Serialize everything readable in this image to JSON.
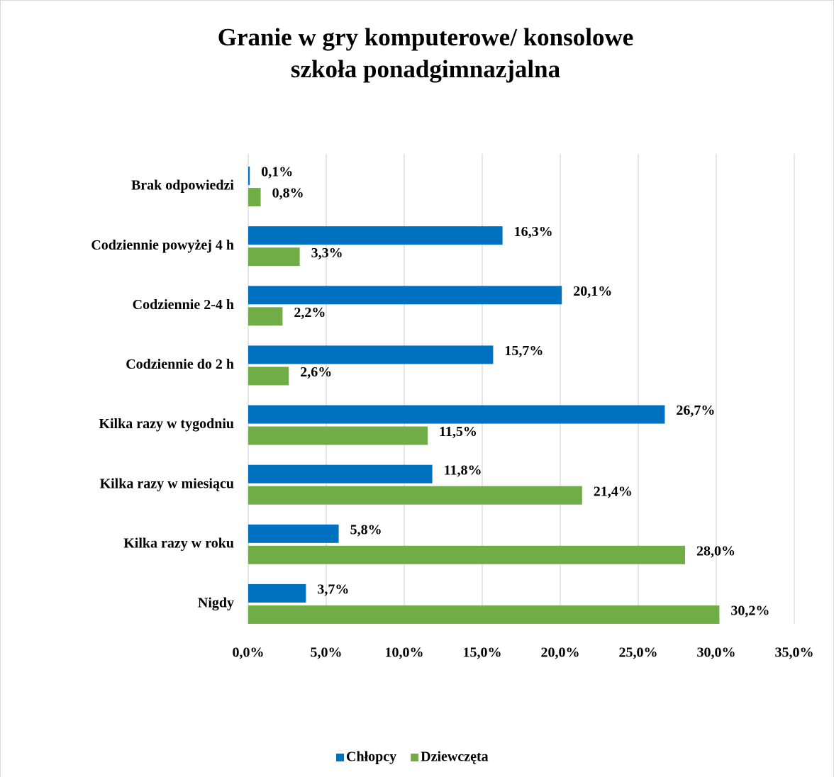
{
  "chart_data": {
    "type": "hbar",
    "title": [
      "Granie w gry komputerowe/ konsolowe",
      "szkoła ponadgimnazjalna"
    ],
    "categories": [
      "Brak odpowiedzi",
      "Codziennie powyżej 4 h",
      "Codziennie 2-4 h",
      "Codziennie do 2 h",
      "Kilka razy w tygodniu",
      "Kilka razy w miesiącu",
      "Kilka razy w roku",
      "Nigdy"
    ],
    "series": [
      {
        "name": "Chłopcy",
        "color": "#0070c0",
        "values": [
          0.1,
          16.3,
          20.1,
          15.7,
          26.7,
          11.8,
          5.8,
          3.7
        ],
        "value_labels": [
          "0,1%",
          "16,3%",
          "20,1%",
          "15,7%",
          "26,7%",
          "11,8%",
          "5,8%",
          "3,7%"
        ]
      },
      {
        "name": "Dziewczęta",
        "color": "#70ad47",
        "values": [
          0.8,
          3.3,
          2.2,
          2.6,
          11.5,
          21.4,
          28.0,
          30.2
        ],
        "value_labels": [
          "0,8%",
          "3,3%",
          "2,2%",
          "2,6%",
          "11,5%",
          "21,4%",
          "28,0%",
          "30,2%"
        ]
      }
    ],
    "xlim": [
      0,
      35
    ],
    "xticks": [
      {
        "value": 0,
        "label": "0,0%"
      },
      {
        "value": 5,
        "label": "5,0%"
      },
      {
        "value": 10,
        "label": "10,0%"
      },
      {
        "value": 15,
        "label": "15,0%"
      },
      {
        "value": 20,
        "label": "20,0%"
      },
      {
        "value": 25,
        "label": "25,0%"
      },
      {
        "value": 30,
        "label": "30,0%"
      },
      {
        "value": 35,
        "label": "35,0%"
      }
    ],
    "grid": true,
    "legend": "bottom"
  }
}
